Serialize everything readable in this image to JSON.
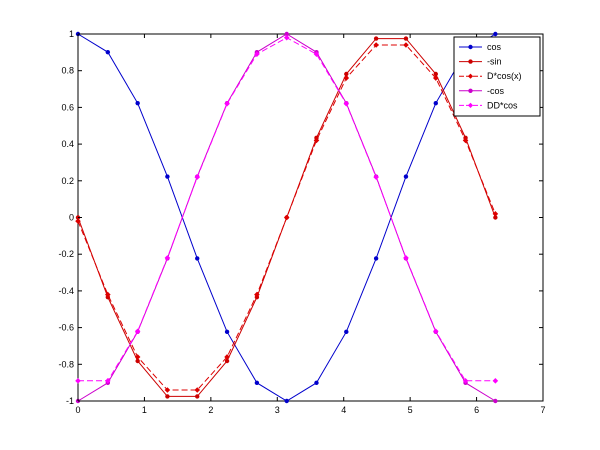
{
  "chart_data": {
    "type": "line",
    "xlim": [
      0,
      7
    ],
    "ylim": [
      -1,
      1
    ],
    "x_ticks": [
      0,
      1,
      2,
      3,
      4,
      5,
      6,
      7
    ],
    "y_ticks": [
      -1,
      -0.8,
      -0.6,
      -0.4,
      -0.2,
      0,
      0.2,
      0.4,
      0.6,
      0.8,
      1
    ],
    "grid": false,
    "legend_position": "top-right",
    "x": [
      0,
      0.449,
      0.898,
      1.346,
      1.795,
      2.244,
      2.693,
      3.142,
      3.59,
      4.039,
      4.488,
      4.937,
      5.386,
      5.834,
      6.283
    ],
    "series": [
      {
        "name": "cos",
        "color": "#0000cc",
        "marker": "dot",
        "dashed": false,
        "values": [
          1,
          0.901,
          0.623,
          0.223,
          -0.223,
          -0.623,
          -0.901,
          -1,
          -0.901,
          -0.623,
          -0.223,
          0.223,
          0.623,
          0.901,
          1
        ]
      },
      {
        "name": "-sin",
        "color": "#cc0000",
        "marker": "dot",
        "dashed": false,
        "values": [
          0,
          -0.434,
          -0.782,
          -0.975,
          -0.975,
          -0.782,
          -0.434,
          0,
          0.434,
          0.782,
          0.975,
          0.975,
          0.782,
          0.434,
          0
        ]
      },
      {
        "name": "D*cos(x)",
        "color": "#dd0000",
        "marker": "diamond",
        "dashed": true,
        "values": [
          -0.02,
          -0.42,
          -0.76,
          -0.94,
          -0.94,
          -0.76,
          -0.42,
          0,
          0.42,
          0.76,
          0.94,
          0.94,
          0.76,
          0.42,
          0.02
        ]
      },
      {
        "name": "-cos",
        "color": "#cc00cc",
        "marker": "dot",
        "dashed": false,
        "values": [
          -1,
          -0.901,
          -0.623,
          -0.223,
          0.223,
          0.623,
          0.901,
          1,
          0.901,
          0.623,
          0.223,
          -0.223,
          -0.623,
          -0.901,
          -1
        ]
      },
      {
        "name": "DD*cos",
        "color": "#ff00ff",
        "marker": "diamond",
        "dashed": true,
        "values": [
          -0.89,
          -0.89,
          -0.62,
          -0.22,
          0.22,
          0.62,
          0.89,
          0.98,
          0.89,
          0.62,
          0.22,
          -0.22,
          -0.62,
          -0.89,
          -0.89
        ]
      }
    ]
  }
}
